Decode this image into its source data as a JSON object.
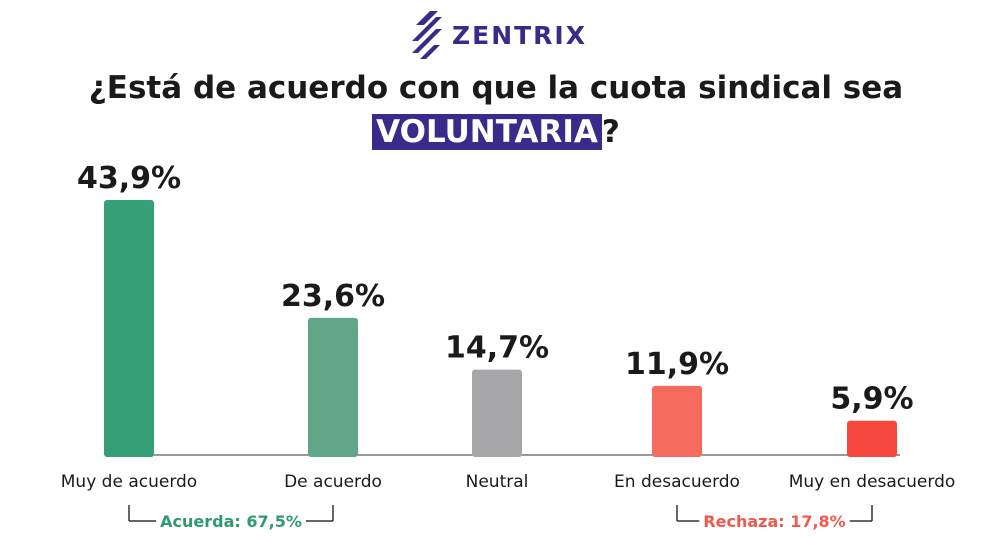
{
  "brand": {
    "name": "ZENTRIX",
    "color": "#3a2a8a"
  },
  "title": {
    "line1": "¿Está de acuerdo con que la cuota sindical sea",
    "highlight": "VOLUNTARIA",
    "suffix": "?"
  },
  "chart_data": {
    "type": "bar",
    "categories": [
      "Muy de acuerdo",
      "De acuerdo",
      "Neutral",
      "En desacuerdo",
      "Muy en desacuerdo"
    ],
    "values": [
      43.9,
      23.6,
      14.7,
      11.9,
      5.9
    ],
    "value_labels": [
      "43,9%",
      "23,6%",
      "14,7%",
      "11,9%",
      "5,9%"
    ],
    "colors": [
      "#35a077",
      "#62a68a",
      "#a6a6a8",
      "#f56b5e",
      "#f5473c"
    ],
    "ylim": [
      0,
      46
    ],
    "grid": false,
    "groups": [
      {
        "label": "Acuerda: 67,5%",
        "color": "#2e9b6e",
        "from": 0,
        "to": 1
      },
      {
        "label": "Rechaza: 17,8%",
        "color": "#f05a4c",
        "from": 3,
        "to": 4
      }
    ]
  }
}
